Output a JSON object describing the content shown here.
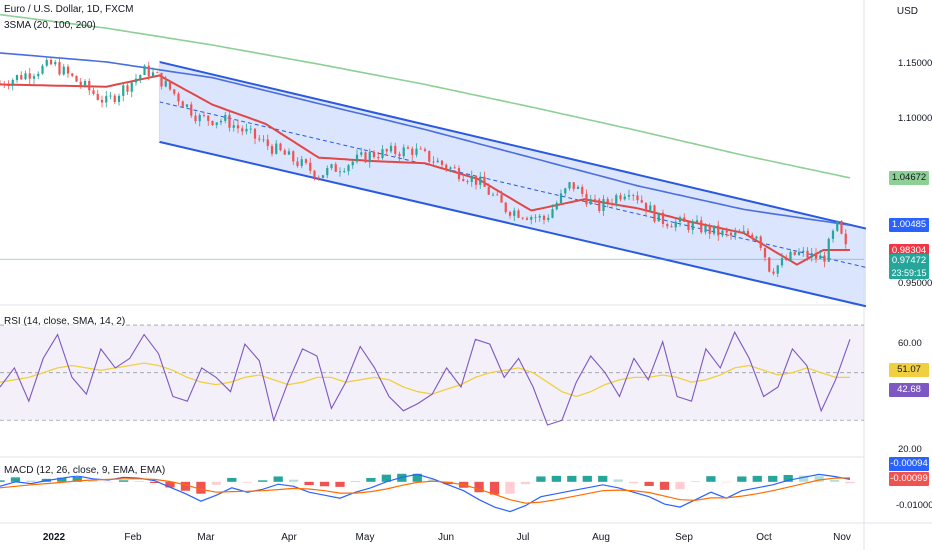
{
  "header": {
    "title": "Euro / U.S. Dollar, 1D, FXCM",
    "indicator": "3SMA (20, 100, 200)",
    "currency": "USD"
  },
  "rsi": {
    "title": "RSI (14, close, SMA, 14, 2)"
  },
  "macd": {
    "title": "MACD (12, 26, close, 9, EMA, EMA)"
  },
  "colors": {
    "up": "#26a69a",
    "down": "#ef5350",
    "sma20": "#e04848",
    "sma100": "#4a6ee0",
    "sma200": "#8ecf95",
    "channel": "#2959e0",
    "channel_fill": "#cfdcfc",
    "rsi": "#7e57c2",
    "rsi_sma": "#f0d040",
    "macd": "#2962ff",
    "signal": "#ff6d00"
  },
  "chart_data": [
    {
      "type": "candlestick",
      "title": "Euro / U.S. Dollar, 1D, FXCM",
      "ylabel": "USD",
      "yticks": [
        "1.15000",
        "1.10000",
        "0.95000"
      ],
      "ylim": [
        0.935,
        1.205
      ],
      "xticks": [
        "2022",
        "Feb",
        "Mar",
        "Apr",
        "May",
        "Jun",
        "Jul",
        "Aug",
        "Sep",
        "Oct",
        "Nov"
      ],
      "anchors": {
        "x": [
          0,
          20,
          40,
          55,
          60,
          75,
          85,
          100,
          120,
          140,
          155,
          170,
          180,
          190,
          205,
          215,
          225,
          237,
          248,
          262,
          275,
          285,
          290,
          300,
          310,
          315,
          320
        ],
        "close": [
          1.131,
          1.148,
          1.114,
          1.143,
          1.135,
          1.1,
          1.098,
          1.077,
          1.05,
          1.068,
          1.072,
          1.055,
          1.044,
          1.02,
          1.01,
          1.042,
          1.02,
          1.038,
          1.01,
          1.004,
          0.995,
          0.998,
          0.965,
          0.98,
          0.975,
          1.005,
          0.974
        ]
      },
      "series": [
        {
          "name": "SMA 20",
          "x": [
            0,
            40,
            60,
            80,
            100,
            120,
            140,
            160,
            180,
            200,
            220,
            240,
            260,
            280,
            300,
            310,
            320
          ],
          "values": [
            1.13,
            1.128,
            1.138,
            1.112,
            1.095,
            1.065,
            1.062,
            1.06,
            1.046,
            1.018,
            1.028,
            1.02,
            1.008,
            0.998,
            0.97,
            0.983,
            0.983
          ]
        },
        {
          "name": "SMA 100",
          "x": [
            0,
            40,
            80,
            120,
            160,
            200,
            240,
            280,
            320
          ],
          "values": [
            1.158,
            1.15,
            1.136,
            1.113,
            1.09,
            1.065,
            1.04,
            1.019,
            1.005
          ]
        },
        {
          "name": "SMA 200",
          "x": [
            0,
            40,
            80,
            120,
            160,
            200,
            240,
            280,
            320
          ],
          "values": [
            1.192,
            1.18,
            1.165,
            1.148,
            1.13,
            1.11,
            1.089,
            1.067,
            1.047
          ]
        }
      ],
      "channel": {
        "x_start": 60,
        "x_end": 326,
        "upper": [
          1.15,
          1.002
        ],
        "lower": [
          1.079,
          0.933
        ]
      },
      "current_price_line": 0.97472,
      "price_badges": [
        {
          "value": "1.04672",
          "color": "#8ecf95",
          "text_color": "#131722",
          "price": 1.04672
        },
        {
          "value": "1.00485",
          "color": "#2962ff",
          "text_color": "#ffffff",
          "price": 1.00485
        },
        {
          "value": "0.98304",
          "color": "#f23645",
          "text_color": "#ffffff",
          "price": 0.98304
        },
        {
          "value": "0.97472",
          "color": "#26a69a",
          "text_color": "#ffffff",
          "price": 0.97472
        }
      ],
      "countdown": "23:59:15"
    },
    {
      "type": "line",
      "title": "RSI (14, close, SMA, 14, 2)",
      "ylim": [
        15,
        78
      ],
      "yticks": [
        "60.00",
        "20.00"
      ],
      "bands": [
        70,
        30
      ],
      "middle": 50,
      "series": [
        {
          "name": "RSI",
          "values": [
            44,
            52,
            38,
            56,
            66,
            48,
            41,
            60,
            52,
            56,
            66,
            58,
            40,
            38,
            52,
            48,
            42,
            62,
            55,
            30,
            46,
            60,
            57,
            35,
            46,
            61,
            52,
            40,
            34,
            37,
            41,
            52,
            44,
            64,
            62,
            48,
            56,
            44,
            28,
            30,
            46,
            57,
            50,
            40,
            56,
            47,
            63,
            40,
            38,
            60,
            52,
            67,
            56,
            40,
            44,
            60,
            53,
            34,
            47,
            64
          ]
        },
        {
          "name": "RSI SMA",
          "values": [
            46,
            47,
            48,
            50,
            52,
            53,
            52,
            51,
            52,
            53,
            54,
            53,
            51,
            48,
            46,
            45,
            46,
            48,
            49,
            47,
            45,
            46,
            48,
            48,
            46,
            47,
            48,
            47,
            44,
            42,
            41,
            43,
            45,
            48,
            50,
            51,
            52,
            50,
            46,
            42,
            40,
            42,
            45,
            47,
            48,
            48,
            49,
            48,
            46,
            47,
            49,
            52,
            53,
            51,
            49,
            50,
            52,
            50,
            48,
            48
          ]
        }
      ],
      "value_badges": [
        {
          "value": "51.07",
          "color": "#f0d040",
          "text_color": "#131722",
          "level": 51.07
        },
        {
          "value": "42.68",
          "color": "#7e57c2",
          "text_color": "#ffffff",
          "level": 42.68
        }
      ]
    },
    {
      "type": "bar",
      "title": "MACD (12, 26, close, 9, EMA, EMA)",
      "ylim": [
        -0.0135,
        0.008
      ],
      "yticks": [
        "-0.01000"
      ],
      "series": [
        {
          "name": "MACD",
          "values": [
            -1.5,
            0.0,
            -0.6,
            0.4,
            1.2,
            2.0,
            1.0,
            0.6,
            1.5,
            1.2,
            0.4,
            -1.8,
            -4.0,
            -6.5,
            -4.5,
            -2.0,
            -3.5,
            -2.5,
            -0.8,
            -1.5,
            -3.5,
            -4.5,
            -5.5,
            -3.5,
            -2.0,
            0.0,
            1.5,
            2.5,
            1.0,
            -1.0,
            -3.0,
            -6.0,
            -8.5,
            -10.0,
            -8.0,
            -5.0,
            -4.0,
            -3.0,
            -2.0,
            -1.0,
            -2.0,
            -3.5,
            -5.0,
            -7.5,
            -8.5,
            -6.0,
            -3.5,
            -5.5,
            -3.0,
            -2.0,
            -1.0,
            0.5,
            1.5,
            2.5,
            1.8,
            0.8
          ]
        },
        {
          "name": "Signal",
          "values": [
            -2.0,
            -1.5,
            -1.0,
            -0.6,
            -0.2,
            0.3,
            0.6,
            0.8,
            1.0,
            1.0,
            0.8,
            0.1,
            -1.0,
            -2.5,
            -3.5,
            -3.3,
            -3.2,
            -3.0,
            -2.6,
            -2.2,
            -2.4,
            -3.0,
            -3.8,
            -3.8,
            -3.3,
            -2.4,
            -1.2,
            -0.2,
            0.2,
            -0.2,
            -1.0,
            -2.5,
            -4.2,
            -6.0,
            -7.2,
            -6.8,
            -6.0,
            -5.0,
            -4.0,
            -3.0,
            -2.8,
            -3.0,
            -3.6,
            -4.8,
            -6.0,
            -6.2,
            -5.4,
            -5.4,
            -4.8,
            -4.0,
            -3.0,
            -1.8,
            -0.6,
            0.6,
            1.2,
            1.3
          ]
        }
      ],
      "value_badges": [
        {
          "value": "-0.00094",
          "color": "#2962ff",
          "text_color": "#ffffff",
          "level": -0.00094
        },
        {
          "value": "-0.00099",
          "color": "#ef5350",
          "text_color": "#ffffff",
          "level": -0.00099
        }
      ]
    }
  ]
}
